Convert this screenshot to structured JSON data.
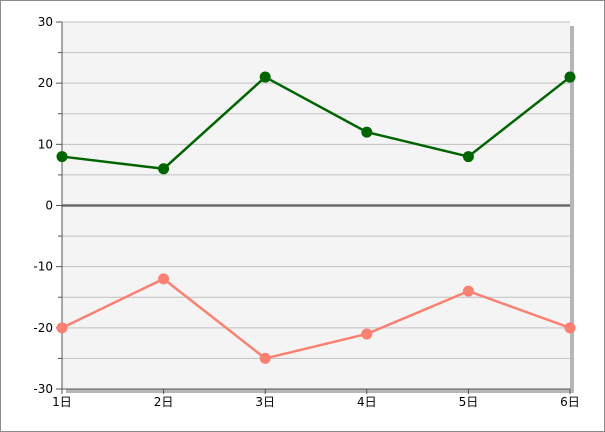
{
  "chart_data": {
    "type": "line",
    "categories": [
      "1日",
      "2日",
      "3日",
      "4日",
      "5日",
      "6日"
    ],
    "series": [
      {
        "values": [
          8,
          6,
          21,
          12,
          8,
          21
        ],
        "color": "#006400"
      },
      {
        "values": [
          -20,
          -12,
          -25,
          -21,
          -14,
          -20
        ],
        "color": "#fa8072"
      }
    ],
    "ylim": [
      -30,
      30
    ],
    "y_ticks": [
      "30",
      "20",
      "10",
      "0",
      "-10",
      "-20",
      "-30"
    ],
    "grid": true,
    "plot_background": "#f4f4f4",
    "gridline_color": "#c0c0c0",
    "zero_line_color": "#696969"
  }
}
